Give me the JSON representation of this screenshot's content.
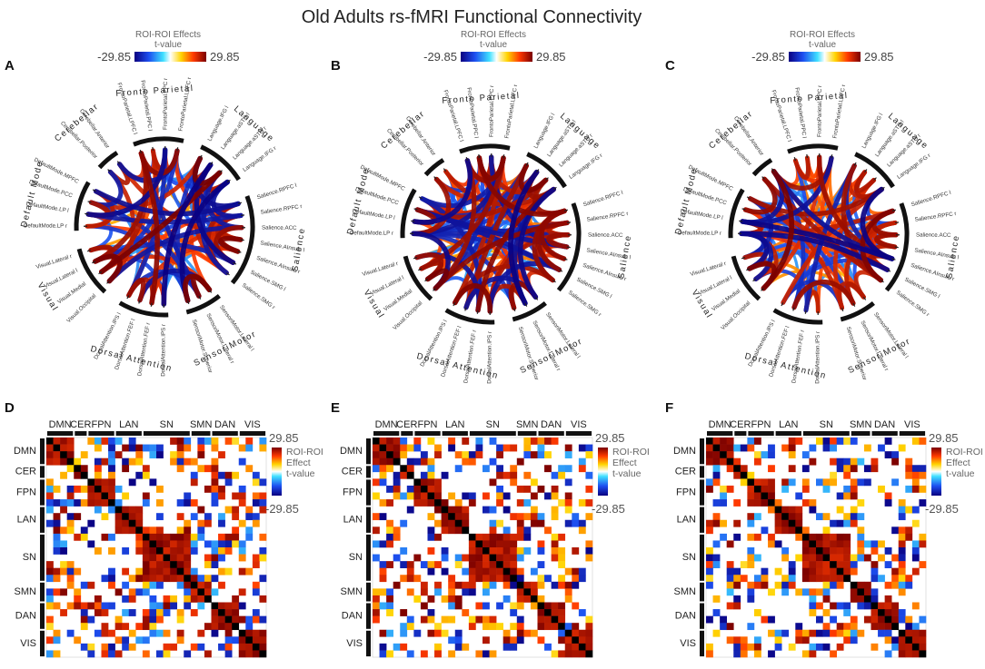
{
  "figure": {
    "title": "Old Adults rs-fMRI Functional Connectivity"
  },
  "colors": {
    "background": "#ffffff",
    "text": "#222222",
    "muted": "#666666",
    "scale_neg": "#1d27c9",
    "scale_mid": "#ffffff",
    "scale_pos": "#8b0000"
  },
  "colorbar_top": {
    "title": "ROI-ROI Effects",
    "subtitle": "t-value",
    "min_label": "-29.85",
    "max_label": "29.85"
  },
  "colorbar_matrix": {
    "max_label": "29.85",
    "min_label": "-29.85",
    "line1": "ROI-ROI",
    "line2": "Effect",
    "line3": "t-value"
  },
  "networks": [
    {
      "name": "Fronto Parietal",
      "rois": [
        "FrontoParietal.LPFC l",
        "FrontoParietal.PPC l",
        "FrontoParietal.PPC r",
        "FrontoParietal.LPFC r"
      ]
    },
    {
      "name": "Language",
      "rois": [
        "Language.IFG l",
        "Language.aSTG l",
        "Language.aSTG r",
        "Language.IFG r"
      ]
    },
    {
      "name": "Salience",
      "rois": [
        "Salience.RPFC l",
        "Salience.RPFC r",
        "Salience.ACC",
        "Salience.AInsula l",
        "Salience.AInsula r",
        "Salience.SMG l",
        "Salience.SMG r"
      ]
    },
    {
      "name": "SensoriMotor",
      "rois": [
        "SensoriMotor.Lateral l",
        "SensoriMotor.Lateral r",
        "SensoriMotor.Superior"
      ]
    },
    {
      "name": "Dorsal Attention",
      "rois": [
        "DorsalAttention.IPS r",
        "DorsalAttention.FEF r",
        "DorsalAttention.FEF l",
        "DorsalAttention.IPS l"
      ]
    },
    {
      "name": "Visual",
      "rois": [
        "Visual.Occipital",
        "Visual.Medial",
        "Visual.Lateral l",
        "Visual.Lateral r"
      ]
    },
    {
      "name": "Default Mode",
      "rois": [
        "DefaultMode.LP r",
        "DefaultMode.LP l",
        "DefaultMode.PCC",
        "DefaultMode.MPFC"
      ]
    },
    {
      "name": "Cerebellar",
      "rois": [
        "Cerebellar.Posterior",
        "Cerebellar.Anterior"
      ]
    }
  ],
  "matrix_networks": {
    "top": [
      "DMN",
      "CER",
      "FPN",
      "LAN",
      "SN",
      "SMN",
      "DAN",
      "VIS"
    ],
    "left": [
      "DMN",
      "CER",
      "FPN",
      "LAN",
      "SN",
      "SMN",
      "DAN",
      "VIS"
    ]
  },
  "chart_data": [
    {
      "type": "chord",
      "panel": "A",
      "title": "Old Adults rs-fMRI Functional Connectivity",
      "colorbar_range": [
        -29.85,
        29.85
      ],
      "colorbar_label": "ROI-ROI Effects t-value",
      "seed": 11
    },
    {
      "type": "chord",
      "panel": "B",
      "colorbar_range": [
        -29.85,
        29.85
      ],
      "colorbar_label": "ROI-ROI Effects t-value",
      "seed": 23
    },
    {
      "type": "chord",
      "panel": "C",
      "colorbar_range": [
        -29.85,
        29.85
      ],
      "colorbar_label": "ROI-ROI Effects t-value",
      "seed": 37
    },
    {
      "type": "heatmap",
      "panel": "D",
      "network_sizes": [
        4,
        2,
        4,
        4,
        7,
        3,
        4,
        4
      ],
      "colorbar_range": [
        -29.85,
        29.85
      ],
      "colorbar_label": "ROI-ROI Effect t-value",
      "seed": 5
    },
    {
      "type": "heatmap",
      "panel": "E",
      "network_sizes": [
        4,
        2,
        4,
        4,
        7,
        3,
        4,
        4
      ],
      "colorbar_range": [
        -29.85,
        29.85
      ],
      "colorbar_label": "ROI-ROI Effect t-value",
      "seed": 17
    },
    {
      "type": "heatmap",
      "panel": "F",
      "network_sizes": [
        4,
        2,
        4,
        4,
        7,
        3,
        4,
        4
      ],
      "colorbar_range": [
        -29.85,
        29.85
      ],
      "colorbar_label": "ROI-ROI Effect t-value",
      "seed": 29
    }
  ]
}
